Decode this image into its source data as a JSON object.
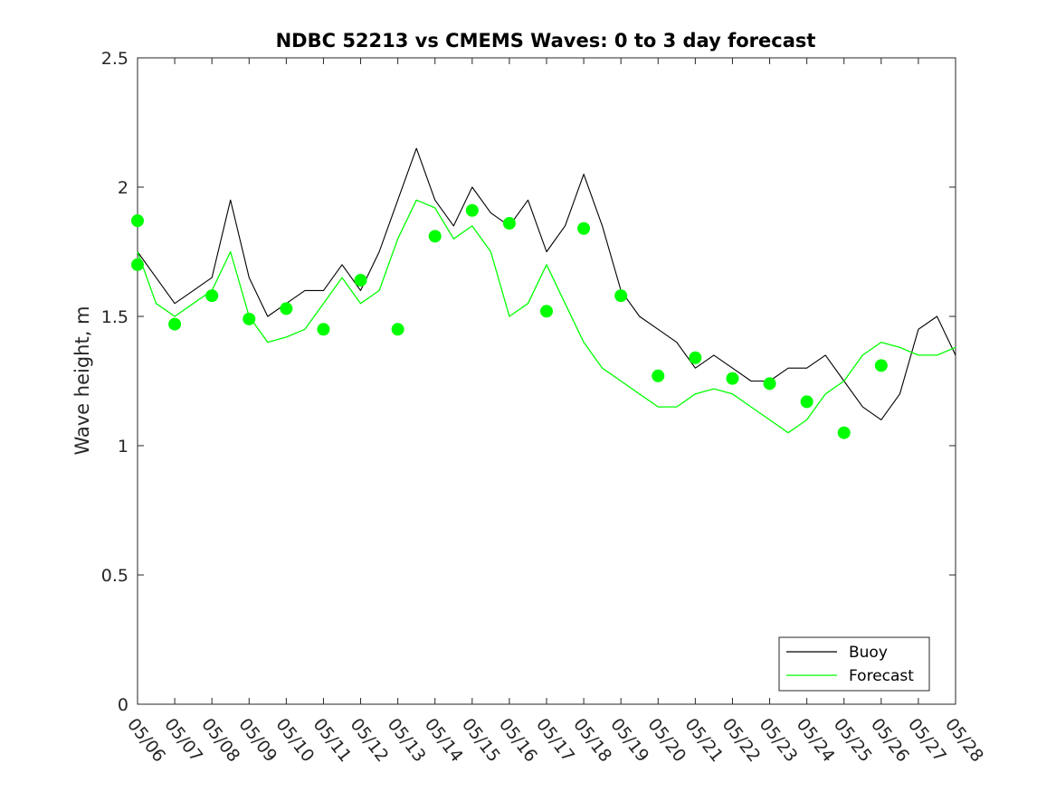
{
  "chart_data": {
    "type": "line",
    "title": "NDBC 52213 vs CMEMS Waves: 0 to 3 day forecast",
    "ylabel": "Wave height, m",
    "xlabel": "",
    "ylim": [
      0,
      2.5
    ],
    "yticks": [
      "0",
      "0.5",
      "1",
      "1.5",
      "2",
      "2.5"
    ],
    "xticks": [
      "05/06",
      "05/07",
      "05/08",
      "05/09",
      "05/10",
      "05/11",
      "05/12",
      "05/13",
      "05/14",
      "05/15",
      "05/16",
      "05/17",
      "05/18",
      "05/19",
      "05/20",
      "05/21",
      "05/22",
      "05/23",
      "05/24",
      "05/25",
      "05/26",
      "05/27",
      "05/28"
    ],
    "legend": {
      "position": "bottom-right",
      "entries": [
        "Buoy",
        "Forecast"
      ]
    },
    "colors": {
      "buoy": "#000000",
      "forecast": "#00ff00"
    },
    "series": [
      {
        "name": "Buoy",
        "x": [
          0,
          0.5,
          1,
          1.5,
          2,
          2.5,
          3,
          3.5,
          4,
          4.5,
          5,
          5.5,
          6,
          6.5,
          7,
          7.5,
          8,
          8.5,
          9,
          9.5,
          10,
          10.5,
          11,
          11.5,
          12,
          12.5,
          13,
          13.5,
          14,
          14.5,
          15,
          15.5,
          16,
          16.5,
          17,
          17.5,
          18,
          18.5,
          19,
          19.5,
          20,
          20.5,
          21,
          21.5,
          22
        ],
        "values": [
          1.75,
          1.65,
          1.55,
          1.6,
          1.65,
          1.95,
          1.65,
          1.5,
          1.55,
          1.6,
          1.6,
          1.7,
          1.6,
          1.75,
          1.95,
          2.15,
          1.95,
          1.85,
          2.0,
          1.9,
          1.85,
          1.95,
          1.75,
          1.85,
          2.05,
          1.85,
          1.6,
          1.5,
          1.45,
          1.4,
          1.3,
          1.35,
          1.3,
          1.25,
          1.25,
          1.3,
          1.3,
          1.35,
          1.25,
          1.15,
          1.1,
          1.2,
          1.45,
          1.5,
          1.35
        ]
      },
      {
        "name": "Forecast",
        "x": [
          0,
          0.5,
          1,
          1.5,
          2,
          2.5,
          3,
          3.5,
          4,
          4.5,
          5,
          5.5,
          6,
          6.5,
          7,
          7.5,
          8,
          8.5,
          9,
          9.5,
          10,
          10.5,
          11,
          11.5,
          12,
          12.5,
          13,
          13.5,
          14,
          14.5,
          15,
          15.5,
          16,
          16.5,
          17,
          17.5,
          18,
          18.5,
          19,
          19.5,
          20,
          20.5,
          21,
          21.5,
          22
        ],
        "values": [
          1.75,
          1.55,
          1.5,
          1.55,
          1.6,
          1.75,
          1.5,
          1.4,
          1.42,
          1.45,
          1.55,
          1.65,
          1.55,
          1.6,
          1.8,
          1.95,
          1.92,
          1.8,
          1.85,
          1.75,
          1.5,
          1.55,
          1.7,
          1.55,
          1.4,
          1.3,
          1.25,
          1.2,
          1.15,
          1.15,
          1.2,
          1.22,
          1.2,
          1.15,
          1.1,
          1.05,
          1.1,
          1.2,
          1.25,
          1.35,
          1.4,
          1.38,
          1.35,
          1.35,
          1.38
        ]
      }
    ],
    "forecast_markers": {
      "x": [
        0,
        0,
        1,
        2,
        3,
        4,
        5,
        6,
        7,
        8,
        9,
        10,
        11,
        12,
        13,
        14,
        15,
        16,
        17,
        18,
        19,
        20
      ],
      "values": [
        1.87,
        1.7,
        1.47,
        1.58,
        1.49,
        1.53,
        1.45,
        1.64,
        1.45,
        1.81,
        1.91,
        1.86,
        1.52,
        1.84,
        1.58,
        1.27,
        1.34,
        1.26,
        1.24,
        1.17,
        1.05,
        1.31
      ]
    }
  }
}
